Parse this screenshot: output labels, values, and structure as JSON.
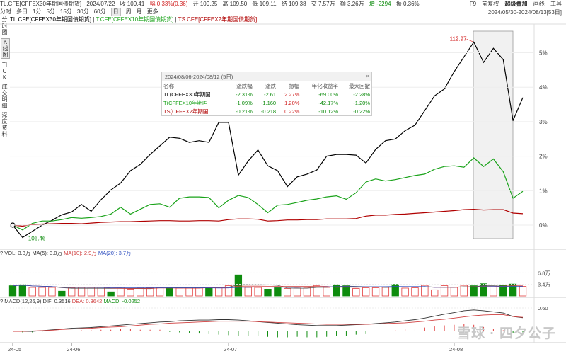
{
  "topbar": {
    "symbol": "TL.CFE[CFFEX30年期国债期货]",
    "date": "2024/07/22",
    "close": "收 109.41",
    "change": "幅 0.33%(0.36)",
    "high": "高 109.50",
    "low": "低 109.11",
    "open": "开 109.25",
    "settle": "结 109.38",
    "volume": "交 7.57万",
    "oi": "额 3.26万",
    "oi_change": "增 -2294",
    "amp": "振 0.36%"
  },
  "toolbar": {
    "f9": "F9",
    "adjust": "前复权",
    "overlay": "超级叠加",
    "draw": "画线",
    "tools": "工具"
  },
  "tabs": [
    "分时",
    "多日",
    "1分",
    "5分",
    "15分",
    "30分",
    "60分",
    "日",
    "周",
    "月",
    "更多"
  ],
  "active_tab": "日",
  "daterange": "2024/05/30-2024/08/13[53日]",
  "leftnav": [
    "分时图",
    "K线图",
    "TICK",
    "成交明细",
    "深度资料"
  ],
  "legend": {
    "s1": "TL.CFE[CFFEX30年期国债期货]",
    "s2": "T.CFE[CFFEX10年期国债期货]",
    "s3": "TS.CFE[CFFEX2年期国债期货]",
    "sep": " | "
  },
  "annotations": {
    "max": "112.97",
    "min": "106.46"
  },
  "tooltip": {
    "title": "2024/08/06-2024/08/12 (5日)",
    "close": "×",
    "headers": [
      "名称",
      "涨跌幅",
      "涨跌",
      "振幅",
      "年化收益率",
      "最大回撤"
    ],
    "rows": [
      {
        "name": "TL(CFFEX30年期国",
        "pct": "-2.31%",
        "chg": "-2.61",
        "amp": "2.27%",
        "ann": "-69.00%",
        "dd": "-2.28%",
        "color": "#000000"
      },
      {
        "name": "T(CFFEX10年期国",
        "pct": "-1.09%",
        "chg": "-1.160",
        "amp": "1.20%",
        "ann": "-42.17%",
        "dd": "-1.20%",
        "color": "#1aa31a"
      },
      {
        "name": "TS(CFFEX2年期国",
        "pct": "-0.21%",
        "chg": "-0.218",
        "amp": "0.22%",
        "ann": "-10.12%",
        "dd": "-0.22%",
        "color": "#b00000"
      }
    ]
  },
  "vol_bar": {
    "q": "?",
    "label": "VOL: 3.3万",
    "ma5": "MA(5): 3.0万",
    "ma10": "MA(10): 2.9万",
    "ma20": "MA(20): 3.7万"
  },
  "macd_bar": {
    "q": "?",
    "label": "MACD(12,26,9)",
    "dif": "DIF: 0.3516",
    "dea": "DEA: 0.3642",
    "macd": "MACD: -0.0252"
  },
  "watermark": "雪球 · 四夕公子",
  "colors": {
    "tl": "#000000",
    "t": "#1aa31a",
    "ts": "#b00000",
    "up": "#e23d3d",
    "down": "#0e8c0e",
    "ma10": "#d04040",
    "ma20": "#3050c0"
  },
  "chart_data": [
    {
      "type": "line",
      "ylabel": "",
      "y_axis": {
        "ticks": [
          "5%",
          "4%",
          "3%",
          "2%",
          "1%",
          "0%"
        ]
      },
      "x_axis": {
        "ticks": [
          "24-05",
          "24-06",
          "24-07",
          "24-08"
        ]
      },
      "x_count": 53,
      "series": [
        {
          "name": "TL.CFE[CFFEX30年期国债期货]",
          "color": "#000000",
          "values": [
            0,
            -0.36,
            -0.18,
            0,
            0.14,
            0.3,
            0.38,
            0.6,
            0.4,
            0.74,
            1.02,
            1.22,
            1.58,
            1.76,
            2.05,
            2.3,
            2.55,
            2.52,
            2.4,
            2.45,
            2.4,
            2.98,
            2.98,
            1.45,
            1.86,
            2.18,
            1.72,
            1.58,
            1.12,
            1.4,
            1.48,
            1.6,
            2.0,
            2.05,
            2.05,
            2.03,
            1.8,
            2.2,
            2.45,
            2.5,
            2.74,
            2.9,
            3.32,
            3.75,
            3.95,
            4.45,
            4.88,
            5.31,
            4.72,
            5.13,
            4.8,
            3.03,
            3.7
          ]
        },
        {
          "name": "T.CFE[CFFEX10年期国债期货]",
          "color": "#1aa31a",
          "values": [
            0,
            -0.14,
            0.05,
            0.12,
            0.12,
            0.16,
            0.22,
            0.2,
            0.22,
            0.25,
            0.32,
            0.52,
            0.32,
            0.46,
            0.6,
            0.62,
            0.52,
            0.78,
            0.82,
            0.82,
            0.8,
            0.5,
            0.72,
            0.86,
            0.8,
            0.6,
            0.36,
            0.58,
            0.6,
            0.66,
            0.72,
            0.76,
            0.82,
            0.85,
            0.75,
            0.94,
            1.25,
            1.34,
            1.28,
            1.32,
            1.38,
            1.44,
            1.48,
            1.62,
            1.7,
            1.72,
            1.68,
            1.95,
            1.7,
            1.92,
            1.55,
            0.78,
            0.98
          ]
        },
        {
          "name": "TS.CFE[CFFEX2年期国债期货]",
          "color": "#b00000",
          "values": [
            0,
            -0.03,
            0.02,
            0.03,
            0.04,
            0.05,
            0.05,
            0.04,
            0.06,
            0.08,
            0.09,
            0.1,
            0.1,
            0.11,
            0.12,
            0.13,
            0.13,
            0.12,
            0.12,
            0.13,
            0.13,
            0.12,
            0.16,
            0.18,
            0.18,
            0.17,
            0.12,
            0.13,
            0.15,
            0.15,
            0.16,
            0.16,
            0.18,
            0.18,
            0.18,
            0.19,
            0.26,
            0.29,
            0.29,
            0.31,
            0.32,
            0.34,
            0.36,
            0.38,
            0.4,
            0.42,
            0.45,
            0.46,
            0.44,
            0.45,
            0.45,
            0.35,
            0.33
          ]
        }
      ]
    },
    {
      "type": "bar",
      "ylabel": "",
      "y_axis": {
        "ticks": [
          "6.8万",
          "3.4万"
        ]
      },
      "series": [
        {
          "name": "VOL",
          "values": [
            3.0,
            3.3,
            2.5,
            2.5,
            2.5,
            1.4,
            2.4,
            2.5,
            2.5,
            2.5,
            1.2,
            2.6,
            2.0,
            2.5,
            2.4,
            2.5,
            2.5,
            2.3,
            2.3,
            2.5,
            2.5,
            2.5,
            3.0,
            6.2,
            2.5,
            2.5,
            2.0,
            2.4,
            2.2,
            2.3,
            2.5,
            3.1,
            2.5,
            3.3,
            3.0,
            2.2,
            2.4,
            2.4,
            2.5,
            3.4,
            2.3,
            2.4,
            3.1,
            1.8,
            3.0,
            2.5,
            3.1,
            3.0,
            3.6,
            3.1,
            3.2,
            3.5,
            2.8
          ],
          "direction": [
            "d",
            "d",
            "u",
            "u",
            "u",
            "d",
            "u",
            "u",
            "u",
            "u",
            "d",
            "u",
            "u",
            "u",
            "u",
            "u",
            "d",
            "u",
            "u",
            "u",
            "d",
            "u",
            "u",
            "d",
            "u",
            "u",
            "d",
            "d",
            "u",
            "u",
            "u",
            "u",
            "u",
            "d",
            "d",
            "u",
            "u",
            "u",
            "u",
            "d",
            "u",
            "u",
            "u",
            "u",
            "u",
            "u",
            "u",
            "d",
            "d",
            "u",
            "d",
            "d",
            "u"
          ]
        }
      ]
    },
    {
      "type": "bar",
      "ylabel": "",
      "y_axis": {
        "ticks": [
          "0.60"
        ]
      },
      "series": [
        {
          "name": "MACD",
          "values": [
            0,
            -0.02,
            -0.02,
            -0.01,
            0.0,
            0.0,
            0.01,
            0.02,
            0.02,
            0.03,
            0.03,
            0.04,
            0.04,
            0.03,
            0.03,
            0.03,
            -0.01,
            -0.02,
            -0.03,
            -0.04,
            -0.05,
            -0.06,
            -0.07,
            -0.08,
            -0.09,
            -0.08,
            -0.1,
            -0.11,
            -0.11,
            -0.1,
            -0.11,
            -0.11,
            -0.1,
            -0.09,
            -0.08,
            -0.06,
            -0.05,
            0.0,
            0.01,
            0.02,
            0.04,
            0.05,
            0.07,
            0.09,
            0.11,
            0.12,
            0.13,
            0.12,
            0.08,
            0.05,
            0.02,
            -0.03,
            -0.03
          ]
        },
        {
          "name": "DIF",
          "values": [
            0.0,
            0.0,
            0.0,
            0.02,
            0.04,
            0.06,
            0.08,
            0.09,
            0.1,
            0.12,
            0.14,
            0.16,
            0.18,
            0.2,
            0.22,
            0.24,
            0.25,
            0.27,
            0.28,
            0.29,
            0.29,
            0.3,
            0.3,
            0.29,
            0.27,
            0.25,
            0.23,
            0.21,
            0.19,
            0.17,
            0.16,
            0.15,
            0.15,
            0.15,
            0.16,
            0.17,
            0.18,
            0.2,
            0.22,
            0.24,
            0.27,
            0.3,
            0.34,
            0.39,
            0.44,
            0.48,
            0.53,
            0.55,
            0.53,
            0.5,
            0.47,
            0.38,
            0.35
          ]
        },
        {
          "name": "DEA",
          "values": [
            0.0,
            0.0,
            0.01,
            0.02,
            0.03,
            0.05,
            0.06,
            0.07,
            0.08,
            0.1,
            0.11,
            0.12,
            0.14,
            0.16,
            0.18,
            0.19,
            0.21,
            0.22,
            0.23,
            0.24,
            0.25,
            0.26,
            0.26,
            0.26,
            0.26,
            0.25,
            0.24,
            0.23,
            0.22,
            0.21,
            0.2,
            0.19,
            0.18,
            0.18,
            0.18,
            0.18,
            0.18,
            0.19,
            0.2,
            0.21,
            0.22,
            0.24,
            0.26,
            0.29,
            0.31,
            0.34,
            0.37,
            0.4,
            0.42,
            0.43,
            0.43,
            0.38,
            0.36
          ]
        }
      ]
    }
  ]
}
